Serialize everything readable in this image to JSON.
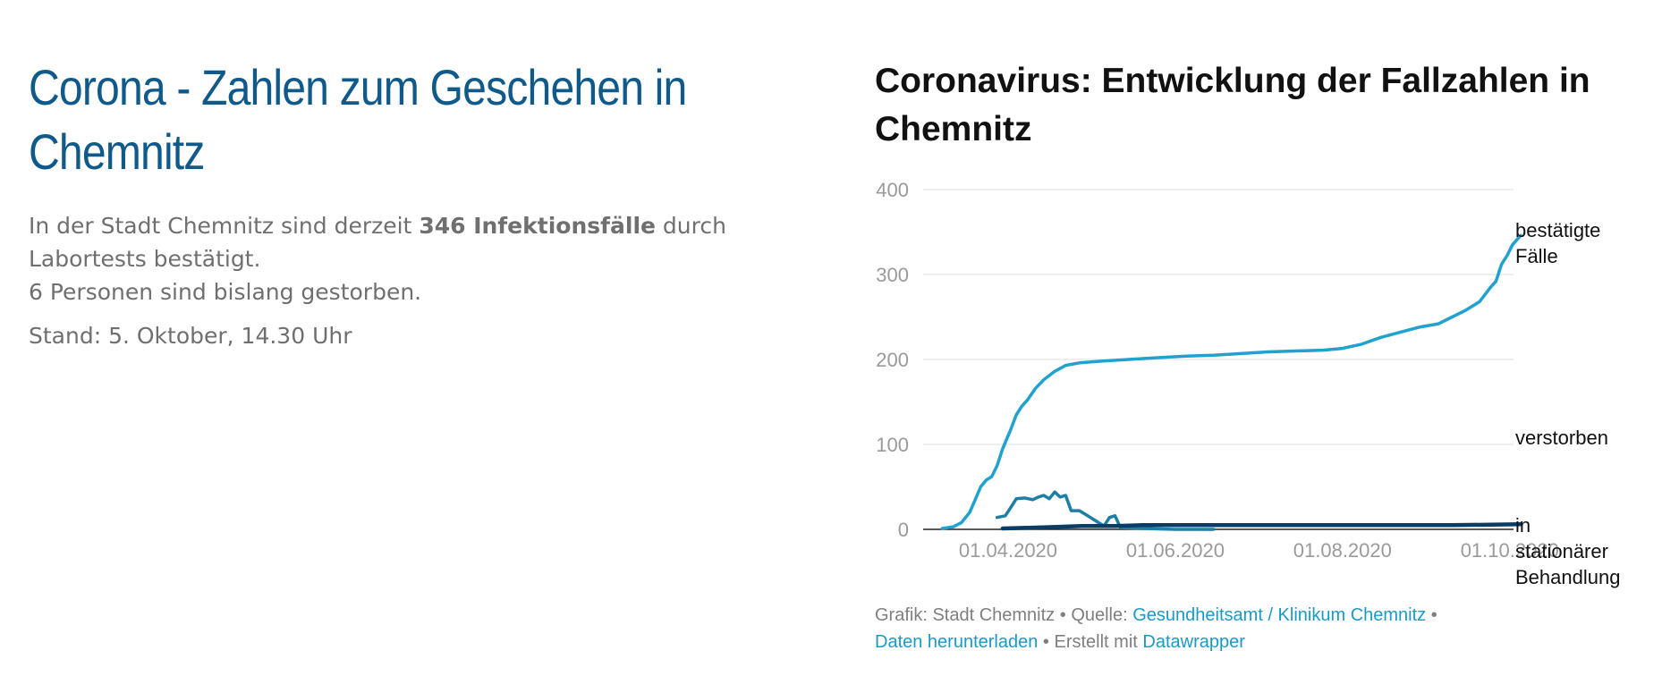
{
  "header": {
    "title": "Corona - Zahlen zum Geschehen in Chemnitz",
    "intro_prefix": "In der Stadt Chemnitz sind derzeit ",
    "intro_bold": "346 Infektionsfälle",
    "intro_suffix": " durch Labortests bestätigt.",
    "deaths_line": "6 Personen sind bislang gestorben.",
    "stand": "Stand: 5. Oktober, 14.30 Uhr"
  },
  "footer": {
    "grafik": "Grafik: Stadt Chemnitz",
    "sep1": " • ",
    "quelle_label": "Quelle: ",
    "quelle_link": "Gesundheitsamt / Klinikum Chemnitz",
    "sep2": " • ",
    "download_link": "Daten herunterladen",
    "sep3": " • ",
    "created_label": "Erstellt mit ",
    "datawrapper_link": "Datawrapper"
  },
  "chart_data": {
    "type": "line",
    "title": "Coronavirus: Entwicklung der Fallzahlen in Chemnitz",
    "xlabel": "",
    "ylabel": "",
    "ylim": [
      0,
      400
    ],
    "xlim": [
      "2020-03-01",
      "2020-10-05"
    ],
    "y_ticks": [
      0,
      100,
      200,
      300,
      400
    ],
    "x_ticks": [
      {
        "date": "2020-04-01",
        "label": "01.04.2020"
      },
      {
        "date": "2020-06-01",
        "label": "01.06.2020"
      },
      {
        "date": "2020-08-01",
        "label": "01.08.2020"
      },
      {
        "date": "2020-10-01",
        "label": "01.10.2020"
      }
    ],
    "grid": true,
    "legend": "direct labels at right end of lines",
    "series": [
      {
        "name": "bestätigte Fälle",
        "label_lines": [
          "bestätigte",
          "Fälle"
        ],
        "color": "#21a1cf",
        "points": [
          [
            "2020-03-08",
            1
          ],
          [
            "2020-03-12",
            3
          ],
          [
            "2020-03-15",
            8
          ],
          [
            "2020-03-18",
            20
          ],
          [
            "2020-03-20",
            35
          ],
          [
            "2020-03-22",
            50
          ],
          [
            "2020-03-24",
            58
          ],
          [
            "2020-03-26",
            62
          ],
          [
            "2020-03-28",
            75
          ],
          [
            "2020-03-30",
            95
          ],
          [
            "2020-04-02",
            118
          ],
          [
            "2020-04-04",
            135
          ],
          [
            "2020-04-06",
            145
          ],
          [
            "2020-04-08",
            152
          ],
          [
            "2020-04-11",
            166
          ],
          [
            "2020-04-14",
            176
          ],
          [
            "2020-04-18",
            186
          ],
          [
            "2020-04-22",
            193
          ],
          [
            "2020-04-27",
            196
          ],
          [
            "2020-05-05",
            198
          ],
          [
            "2020-05-15",
            200
          ],
          [
            "2020-05-25",
            202
          ],
          [
            "2020-06-05",
            204
          ],
          [
            "2020-06-15",
            205
          ],
          [
            "2020-06-25",
            207
          ],
          [
            "2020-07-05",
            209
          ],
          [
            "2020-07-15",
            210
          ],
          [
            "2020-07-25",
            211
          ],
          [
            "2020-08-01",
            213
          ],
          [
            "2020-08-08",
            218
          ],
          [
            "2020-08-15",
            226
          ],
          [
            "2020-08-22",
            232
          ],
          [
            "2020-08-29",
            238
          ],
          [
            "2020-09-05",
            242
          ],
          [
            "2020-09-10",
            250
          ],
          [
            "2020-09-15",
            258
          ],
          [
            "2020-09-20",
            268
          ],
          [
            "2020-09-24",
            285
          ],
          [
            "2020-09-26",
            292
          ],
          [
            "2020-09-28",
            312
          ],
          [
            "2020-09-30",
            322
          ],
          [
            "2020-10-02",
            335
          ],
          [
            "2020-10-05",
            346
          ]
        ]
      },
      {
        "name": "verstorben",
        "label_lines": [
          "verstorben"
        ],
        "color": "#1d7fa3",
        "points": [
          [
            "2020-03-28",
            14
          ],
          [
            "2020-03-31",
            16
          ],
          [
            "2020-04-02",
            26
          ],
          [
            "2020-04-04",
            36
          ],
          [
            "2020-04-07",
            37
          ],
          [
            "2020-04-10",
            35
          ],
          [
            "2020-04-12",
            38
          ],
          [
            "2020-04-14",
            40
          ],
          [
            "2020-04-16",
            36
          ],
          [
            "2020-04-18",
            44
          ],
          [
            "2020-04-20",
            38
          ],
          [
            "2020-04-22",
            40
          ],
          [
            "2020-04-24",
            22
          ],
          [
            "2020-04-27",
            22
          ],
          [
            "2020-04-30",
            16
          ],
          [
            "2020-05-03",
            10
          ],
          [
            "2020-05-06",
            4
          ],
          [
            "2020-05-08",
            14
          ],
          [
            "2020-05-10",
            16
          ],
          [
            "2020-05-12",
            2
          ],
          [
            "2020-05-20",
            1
          ],
          [
            "2020-06-01",
            0
          ],
          [
            "2020-06-15",
            0
          ]
        ]
      },
      {
        "name": "in stationärer Behandlung",
        "label_lines": [
          "in",
          "stationärer",
          "Behandlung"
        ],
        "color": "#0a3d66",
        "points": [
          [
            "2020-03-30",
            1
          ],
          [
            "2020-04-10",
            2
          ],
          [
            "2020-04-20",
            3
          ],
          [
            "2020-04-28",
            4
          ],
          [
            "2020-05-10",
            4
          ],
          [
            "2020-05-20",
            5
          ],
          [
            "2020-06-10",
            5
          ],
          [
            "2020-07-10",
            5
          ],
          [
            "2020-08-10",
            5
          ],
          [
            "2020-09-10",
            5
          ],
          [
            "2020-10-05",
            6
          ]
        ]
      }
    ]
  }
}
